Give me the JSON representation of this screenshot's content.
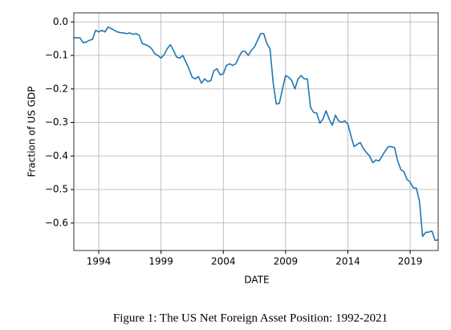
{
  "chart_data": {
    "type": "line",
    "title": "Figure 1: The US Net Foreign Asset Position: 1992-2021",
    "xlabel": "DATE",
    "ylabel": "Fraction of US GDP",
    "color": "#1f77b4",
    "grid": true,
    "xlim": [
      1992,
      2021.25
    ],
    "ylim": [
      -0.682,
      0.027
    ],
    "xticks": [
      1994,
      1999,
      2004,
      2009,
      2014,
      2019
    ],
    "yticks": [
      {
        "value": 0,
        "label": "0.0"
      },
      {
        "value": -0.1,
        "label": "−0.1"
      },
      {
        "value": -0.2,
        "label": "−0.2"
      },
      {
        "value": -0.3,
        "label": "−0.3"
      },
      {
        "value": -0.4,
        "label": "−0.4"
      },
      {
        "value": -0.5,
        "label": "−0.5"
      },
      {
        "value": -0.6,
        "label": "−0.6"
      }
    ],
    "x": [
      1992,
      1992.25,
      1992.5,
      1992.75,
      1993,
      1993.25,
      1993.5,
      1993.75,
      1994,
      1994.25,
      1994.5,
      1994.75,
      1995,
      1995.25,
      1995.5,
      1995.75,
      1996,
      1996.25,
      1996.5,
      1996.75,
      1997,
      1997.25,
      1997.5,
      1997.75,
      1998,
      1998.25,
      1998.5,
      1998.75,
      1999,
      1999.25,
      1999.5,
      1999.75,
      2000,
      2000.25,
      2000.5,
      2000.75,
      2001,
      2001.25,
      2001.5,
      2001.75,
      2002,
      2002.25,
      2002.5,
      2002.75,
      2003,
      2003.25,
      2003.5,
      2003.75,
      2004,
      2004.25,
      2004.5,
      2004.75,
      2005,
      2005.25,
      2005.5,
      2005.75,
      2006,
      2006.25,
      2006.5,
      2006.75,
      2007,
      2007.25,
      2007.5,
      2007.75,
      2008,
      2008.25,
      2008.5,
      2008.75,
      2009,
      2009.25,
      2009.5,
      2009.75,
      2010,
      2010.25,
      2010.5,
      2010.75,
      2011,
      2011.25,
      2011.5,
      2011.75,
      2012,
      2012.25,
      2012.5,
      2012.75,
      2013,
      2013.25,
      2013.5,
      2013.75,
      2014,
      2014.25,
      2014.5,
      2014.75,
      2015,
      2015.25,
      2015.5,
      2015.75,
      2016,
      2016.25,
      2016.5,
      2016.75,
      2017,
      2017.25,
      2017.5,
      2017.75,
      2018,
      2018.25,
      2018.5,
      2018.75,
      2019,
      2019.25,
      2019.5,
      2019.75,
      2020,
      2020.25,
      2020.5,
      2020.75,
      2021,
      2021.25
    ],
    "values": [
      -0.048,
      -0.047,
      -0.048,
      -0.062,
      -0.06,
      -0.055,
      -0.052,
      -0.025,
      -0.03,
      -0.025,
      -0.03,
      -0.015,
      -0.02,
      -0.025,
      -0.03,
      -0.032,
      -0.033,
      -0.035,
      -0.033,
      -0.037,
      -0.035,
      -0.04,
      -0.065,
      -0.068,
      -0.072,
      -0.08,
      -0.095,
      -0.1,
      -0.108,
      -0.098,
      -0.08,
      -0.068,
      -0.085,
      -0.105,
      -0.108,
      -0.1,
      -0.12,
      -0.14,
      -0.165,
      -0.17,
      -0.163,
      -0.183,
      -0.17,
      -0.178,
      -0.175,
      -0.145,
      -0.14,
      -0.158,
      -0.155,
      -0.13,
      -0.125,
      -0.13,
      -0.125,
      -0.105,
      -0.088,
      -0.088,
      -0.1,
      -0.085,
      -0.075,
      -0.055,
      -0.035,
      -0.035,
      -0.065,
      -0.08,
      -0.18,
      -0.245,
      -0.243,
      -0.2,
      -0.16,
      -0.165,
      -0.175,
      -0.2,
      -0.17,
      -0.16,
      -0.17,
      -0.17,
      -0.255,
      -0.27,
      -0.272,
      -0.302,
      -0.29,
      -0.265,
      -0.29,
      -0.308,
      -0.278,
      -0.295,
      -0.3,
      -0.295,
      -0.305,
      -0.34,
      -0.372,
      -0.365,
      -0.36,
      -0.378,
      -0.39,
      -0.4,
      -0.42,
      -0.412,
      -0.415,
      -0.4,
      -0.385,
      -0.372,
      -0.372,
      -0.375,
      -0.415,
      -0.44,
      -0.447,
      -0.47,
      -0.478,
      -0.495,
      -0.496,
      -0.535,
      -0.64,
      -0.628,
      -0.627,
      -0.624,
      -0.652,
      -0.65
    ]
  }
}
